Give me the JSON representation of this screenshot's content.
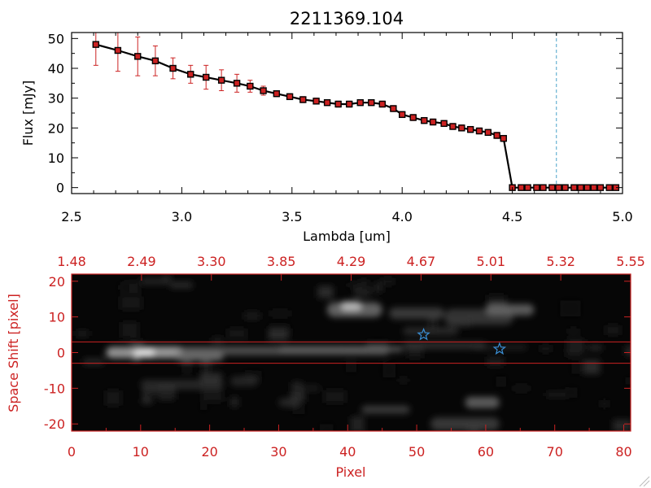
{
  "chart_data": [
    {
      "type": "line",
      "title": "2211369.104",
      "xlabel": "Lambda [um]",
      "ylabel": "Flux [mJy]",
      "xlim": [
        2.5,
        5.0
      ],
      "ylim": [
        -2,
        52
      ],
      "x_ticks": [
        "2.5",
        "3.0",
        "3.5",
        "4.0",
        "4.5",
        "5.0"
      ],
      "y_ticks": [
        "0",
        "10",
        "20",
        "30",
        "40",
        "50"
      ],
      "grid": false,
      "legend": "none",
      "vline_x": 4.7,
      "colors": {
        "line": "#000000",
        "marker": "#cc2222",
        "errorbar": "#cc2222",
        "vline": "#4aa3c9"
      },
      "series": [
        {
          "x": [
            2.61,
            2.71,
            2.8,
            2.88,
            2.96,
            3.04,
            3.11,
            3.18,
            3.25,
            3.31,
            3.37,
            3.43,
            3.49,
            3.55,
            3.61,
            3.66,
            3.71,
            3.76,
            3.81,
            3.86,
            3.91,
            3.96,
            4.0,
            4.05,
            4.1,
            4.14,
            4.19,
            4.23,
            4.27,
            4.31,
            4.35,
            4.39,
            4.43,
            4.46,
            4.5,
            4.54,
            4.57,
            4.61,
            4.64,
            4.68,
            4.71,
            4.74,
            4.78,
            4.81,
            4.84,
            4.87,
            4.9,
            4.94,
            4.97
          ],
          "values": [
            48,
            46,
            44,
            42.5,
            40,
            38,
            37,
            36,
            35,
            34,
            32.5,
            31.5,
            30.5,
            29.5,
            29,
            28.5,
            28,
            28,
            28.5,
            28.5,
            28,
            26.5,
            24.5,
            23.5,
            22.5,
            22,
            21.5,
            20.5,
            20,
            19.5,
            19,
            18.5,
            17.5,
            16.5,
            0,
            0,
            0,
            0,
            0,
            0,
            0,
            0,
            0,
            0,
            0,
            0,
            0,
            0,
            0
          ],
          "errors": [
            7,
            7,
            6.5,
            5,
            3.5,
            3,
            4,
            3.5,
            3,
            2,
            1.5,
            1,
            1,
            1,
            1,
            1,
            1,
            1,
            1,
            1,
            1,
            1,
            1,
            1,
            1,
            1,
            1,
            1,
            1,
            1,
            1,
            1,
            1,
            1,
            0.5,
            0.5,
            0.5,
            0.5,
            0.5,
            0.5,
            0.5,
            0.5,
            0.5,
            0.5,
            0.5,
            0.5,
            0.5,
            0.5,
            0.5
          ]
        }
      ]
    },
    {
      "type": "heatmap",
      "xlabel": "Pixel",
      "ylabel": "Space Shift [pixel]",
      "xlim": [
        0,
        81
      ],
      "ylim": [
        -22,
        22
      ],
      "x_ticks": [
        "0",
        "10",
        "20",
        "30",
        "40",
        "50",
        "60",
        "70",
        "80"
      ],
      "y_ticks": [
        "-20",
        "-10",
        "0",
        "10",
        "20"
      ],
      "top_ticks": [
        "1.48",
        "2.49",
        "3.30",
        "3.85",
        "4.29",
        "4.67",
        "5.01",
        "5.32",
        "5.55"
      ],
      "extraction_band": [
        -3,
        3
      ],
      "star_markers": [
        {
          "x": 51,
          "y": 5
        },
        {
          "x": 62,
          "y": 1
        }
      ],
      "colors": {
        "axis": "#cc2222",
        "band": "#cc2222",
        "star": "#3a8fd6"
      }
    }
  ]
}
